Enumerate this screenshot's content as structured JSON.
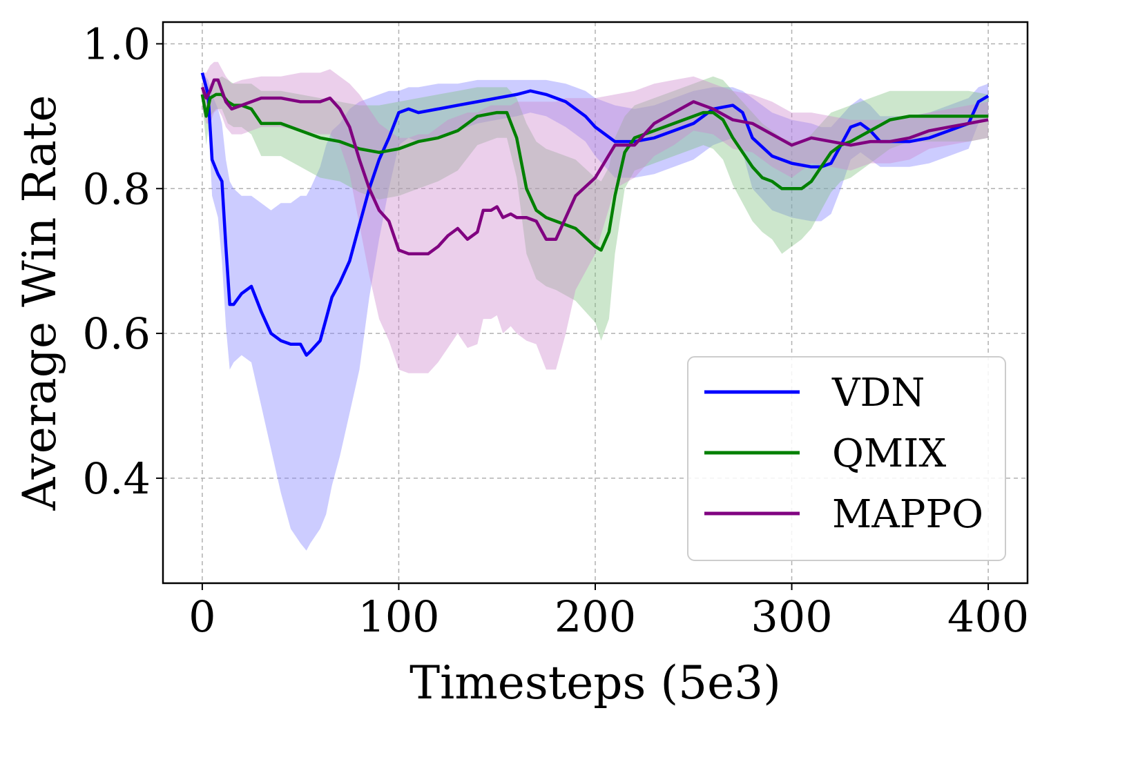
{
  "chart_data": {
    "type": "line",
    "title": "",
    "xlabel": "Timesteps (5e3)",
    "ylabel": "Average Win Rate",
    "xlim": [
      -20,
      420
    ],
    "ylim": [
      0.255,
      1.03
    ],
    "xticks": [
      0,
      100,
      200,
      300,
      400
    ],
    "yticks": [
      0.4,
      0.6,
      0.8,
      1.0
    ],
    "xtick_labels": [
      "0",
      "100",
      "200",
      "300",
      "400"
    ],
    "ytick_labels": [
      "0.4",
      "0.6",
      "0.8",
      "1.0"
    ],
    "grid": true,
    "legend_position": "lower-right",
    "series": [
      {
        "name": "VDN",
        "color": "#0000ff",
        "fill_color": "#8080ff",
        "x": [
          0,
          3,
          5,
          8,
          10,
          12,
          14,
          16,
          20,
          25,
          30,
          35,
          40,
          45,
          50,
          53,
          55,
          60,
          63,
          66,
          70,
          75,
          80,
          85,
          90,
          95,
          100,
          105,
          110,
          120,
          130,
          140,
          150,
          160,
          167,
          175,
          185,
          195,
          200,
          205,
          210,
          220,
          230,
          240,
          250,
          260,
          270,
          275,
          280,
          290,
          300,
          310,
          315,
          320,
          325,
          330,
          335,
          340,
          345,
          350,
          360,
          370,
          380,
          390,
          395,
          400
        ],
        "y": [
          0.96,
          0.93,
          0.84,
          0.82,
          0.81,
          0.72,
          0.64,
          0.64,
          0.655,
          0.665,
          0.63,
          0.6,
          0.59,
          0.585,
          0.585,
          0.57,
          0.575,
          0.59,
          0.62,
          0.65,
          0.67,
          0.7,
          0.75,
          0.8,
          0.84,
          0.87,
          0.905,
          0.91,
          0.905,
          0.91,
          0.915,
          0.92,
          0.925,
          0.93,
          0.935,
          0.93,
          0.92,
          0.9,
          0.885,
          0.875,
          0.865,
          0.865,
          0.87,
          0.88,
          0.89,
          0.91,
          0.915,
          0.905,
          0.87,
          0.845,
          0.835,
          0.83,
          0.83,
          0.835,
          0.86,
          0.885,
          0.89,
          0.88,
          0.865,
          0.865,
          0.865,
          0.87,
          0.88,
          0.89,
          0.92,
          0.928
        ],
        "upper": [
          0.96,
          0.95,
          0.93,
          0.91,
          0.89,
          0.84,
          0.81,
          0.8,
          0.79,
          0.79,
          0.78,
          0.77,
          0.78,
          0.78,
          0.79,
          0.79,
          0.8,
          0.83,
          0.86,
          0.88,
          0.89,
          0.91,
          0.92,
          0.925,
          0.93,
          0.935,
          0.935,
          0.94,
          0.94,
          0.945,
          0.945,
          0.95,
          0.95,
          0.95,
          0.95,
          0.95,
          0.945,
          0.935,
          0.925,
          0.92,
          0.915,
          0.91,
          0.915,
          0.925,
          0.935,
          0.94,
          0.94,
          0.935,
          0.925,
          0.905,
          0.895,
          0.89,
          0.885,
          0.885,
          0.9,
          0.915,
          0.925,
          0.915,
          0.9,
          0.9,
          0.9,
          0.905,
          0.915,
          0.925,
          0.94,
          0.945
        ],
        "lower": [
          0.955,
          0.9,
          0.79,
          0.76,
          0.7,
          0.61,
          0.55,
          0.56,
          0.57,
          0.56,
          0.5,
          0.44,
          0.38,
          0.33,
          0.31,
          0.3,
          0.31,
          0.33,
          0.35,
          0.39,
          0.43,
          0.49,
          0.55,
          0.65,
          0.73,
          0.8,
          0.86,
          0.87,
          0.865,
          0.87,
          0.88,
          0.89,
          0.895,
          0.9,
          0.905,
          0.9,
          0.885,
          0.865,
          0.845,
          0.83,
          0.815,
          0.815,
          0.82,
          0.83,
          0.84,
          0.86,
          0.87,
          0.85,
          0.8,
          0.77,
          0.76,
          0.755,
          0.755,
          0.765,
          0.8,
          0.84,
          0.85,
          0.84,
          0.83,
          0.83,
          0.83,
          0.835,
          0.845,
          0.855,
          0.89,
          0.9
        ]
      },
      {
        "name": "QMIX",
        "color": "#008000",
        "fill_color": "#80c080",
        "x": [
          0,
          2,
          4,
          7,
          10,
          13,
          16,
          20,
          25,
          30,
          35,
          40,
          50,
          60,
          70,
          80,
          90,
          100,
          110,
          120,
          130,
          140,
          150,
          155,
          160,
          165,
          170,
          175,
          180,
          190,
          200,
          203,
          207,
          210,
          215,
          220,
          230,
          240,
          250,
          255,
          260,
          265,
          270,
          275,
          280,
          285,
          290,
          295,
          300,
          305,
          310,
          315,
          320,
          325,
          330,
          340,
          350,
          360,
          370,
          380,
          390,
          400
        ],
        "y": [
          0.93,
          0.9,
          0.925,
          0.93,
          0.93,
          0.92,
          0.915,
          0.915,
          0.91,
          0.89,
          0.89,
          0.89,
          0.88,
          0.87,
          0.865,
          0.855,
          0.85,
          0.855,
          0.865,
          0.87,
          0.88,
          0.9,
          0.905,
          0.905,
          0.87,
          0.8,
          0.77,
          0.76,
          0.755,
          0.745,
          0.72,
          0.715,
          0.74,
          0.79,
          0.85,
          0.87,
          0.88,
          0.89,
          0.9,
          0.905,
          0.905,
          0.895,
          0.87,
          0.85,
          0.83,
          0.815,
          0.81,
          0.8,
          0.8,
          0.8,
          0.81,
          0.83,
          0.85,
          0.86,
          0.865,
          0.88,
          0.895,
          0.9,
          0.9,
          0.9,
          0.9,
          0.9
        ],
        "upper": [
          0.94,
          0.935,
          0.945,
          0.95,
          0.955,
          0.95,
          0.945,
          0.945,
          0.945,
          0.935,
          0.935,
          0.935,
          0.93,
          0.925,
          0.92,
          0.915,
          0.915,
          0.92,
          0.925,
          0.93,
          0.935,
          0.94,
          0.94,
          0.94,
          0.925,
          0.89,
          0.865,
          0.855,
          0.85,
          0.84,
          0.815,
          0.81,
          0.83,
          0.87,
          0.9,
          0.915,
          0.925,
          0.935,
          0.945,
          0.95,
          0.955,
          0.95,
          0.935,
          0.92,
          0.905,
          0.89,
          0.88,
          0.87,
          0.865,
          0.865,
          0.875,
          0.89,
          0.905,
          0.91,
          0.915,
          0.925,
          0.935,
          0.935,
          0.935,
          0.935,
          0.935,
          0.93
        ],
        "lower": [
          0.92,
          0.86,
          0.9,
          0.91,
          0.91,
          0.89,
          0.885,
          0.885,
          0.875,
          0.845,
          0.845,
          0.845,
          0.83,
          0.815,
          0.81,
          0.795,
          0.785,
          0.79,
          0.8,
          0.81,
          0.825,
          0.86,
          0.87,
          0.87,
          0.815,
          0.71,
          0.675,
          0.665,
          0.66,
          0.645,
          0.615,
          0.59,
          0.62,
          0.71,
          0.8,
          0.825,
          0.835,
          0.845,
          0.855,
          0.86,
          0.855,
          0.84,
          0.805,
          0.78,
          0.755,
          0.74,
          0.73,
          0.71,
          0.72,
          0.73,
          0.745,
          0.77,
          0.795,
          0.81,
          0.815,
          0.835,
          0.855,
          0.865,
          0.865,
          0.865,
          0.865,
          0.87
        ]
      },
      {
        "name": "MAPPO",
        "color": "#800080",
        "fill_color": "#cc88cc",
        "x": [
          0,
          2,
          4,
          6,
          8,
          10,
          12,
          15,
          20,
          30,
          40,
          50,
          60,
          65,
          70,
          75,
          80,
          85,
          90,
          95,
          100,
          105,
          110,
          115,
          120,
          125,
          130,
          135,
          140,
          143,
          147,
          150,
          153,
          157,
          160,
          165,
          170,
          175,
          180,
          185,
          190,
          200,
          210,
          220,
          230,
          240,
          250,
          260,
          270,
          280,
          290,
          300,
          310,
          320,
          330,
          340,
          350,
          360,
          370,
          380,
          390,
          400
        ],
        "y": [
          0.94,
          0.925,
          0.935,
          0.95,
          0.95,
          0.935,
          0.92,
          0.91,
          0.915,
          0.925,
          0.925,
          0.92,
          0.92,
          0.925,
          0.91,
          0.885,
          0.84,
          0.8,
          0.77,
          0.755,
          0.715,
          0.71,
          0.71,
          0.71,
          0.72,
          0.735,
          0.745,
          0.73,
          0.74,
          0.77,
          0.77,
          0.775,
          0.76,
          0.765,
          0.76,
          0.76,
          0.755,
          0.73,
          0.73,
          0.76,
          0.79,
          0.815,
          0.86,
          0.86,
          0.89,
          0.905,
          0.92,
          0.91,
          0.895,
          0.89,
          0.875,
          0.86,
          0.87,
          0.865,
          0.86,
          0.865,
          0.865,
          0.87,
          0.88,
          0.885,
          0.89,
          0.895
        ],
        "upper": [
          0.96,
          0.96,
          0.97,
          0.975,
          0.975,
          0.965,
          0.955,
          0.945,
          0.95,
          0.955,
          0.955,
          0.96,
          0.96,
          0.965,
          0.955,
          0.945,
          0.93,
          0.91,
          0.89,
          0.88,
          0.87,
          0.87,
          0.875,
          0.875,
          0.885,
          0.895,
          0.9,
          0.905,
          0.905,
          0.91,
          0.915,
          0.915,
          0.915,
          0.915,
          0.92,
          0.92,
          0.92,
          0.92,
          0.92,
          0.925,
          0.925,
          0.925,
          0.93,
          0.935,
          0.945,
          0.95,
          0.955,
          0.945,
          0.935,
          0.93,
          0.92,
          0.905,
          0.905,
          0.9,
          0.895,
          0.895,
          0.895,
          0.9,
          0.905,
          0.91,
          0.915,
          0.92
        ],
        "lower": [
          0.91,
          0.89,
          0.89,
          0.905,
          0.91,
          0.9,
          0.885,
          0.875,
          0.875,
          0.885,
          0.885,
          0.88,
          0.875,
          0.875,
          0.86,
          0.82,
          0.75,
          0.68,
          0.62,
          0.59,
          0.55,
          0.545,
          0.545,
          0.545,
          0.56,
          0.58,
          0.6,
          0.58,
          0.585,
          0.62,
          0.62,
          0.625,
          0.6,
          0.61,
          0.6,
          0.59,
          0.585,
          0.55,
          0.55,
          0.6,
          0.66,
          0.71,
          0.8,
          0.815,
          0.845,
          0.86,
          0.88,
          0.875,
          0.855,
          0.85,
          0.83,
          0.815,
          0.835,
          0.83,
          0.825,
          0.835,
          0.835,
          0.84,
          0.855,
          0.86,
          0.865,
          0.87
        ]
      }
    ]
  }
}
